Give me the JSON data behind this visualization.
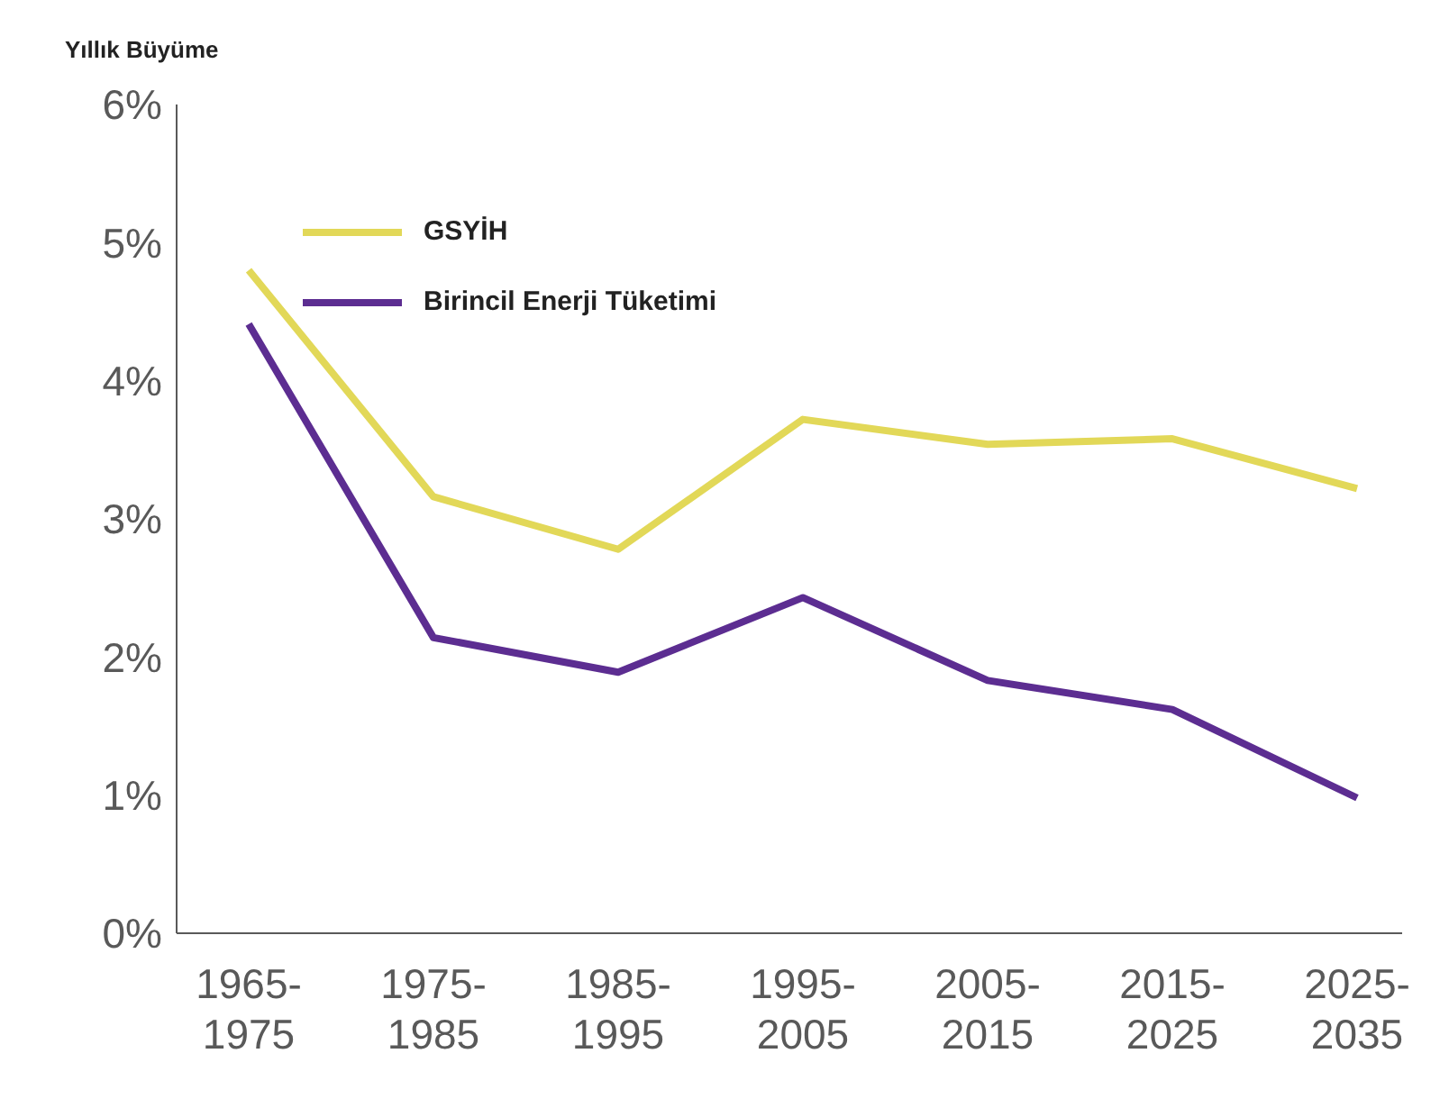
{
  "chart_data": {
    "type": "line",
    "ylabel": "Yıllık Büyüme",
    "categories": [
      "1965-1975",
      "1975-1985",
      "1985-1995",
      "1995-2005",
      "2005-2015",
      "2015-2025",
      "2025-2035"
    ],
    "series": [
      {
        "name": "GSYİH",
        "color": "#e2d858",
        "values": [
          4.8,
          3.16,
          2.78,
          3.72,
          3.54,
          3.58,
          3.22
        ]
      },
      {
        "name": "Birincil Enerji Tüketimi",
        "color": "#5c2d91",
        "values": [
          4.41,
          2.14,
          1.89,
          2.43,
          1.83,
          1.62,
          0.98
        ]
      }
    ],
    "ylim": [
      0,
      6
    ],
    "yticks": [
      {
        "value": 0,
        "label": "0%"
      },
      {
        "value": 1,
        "label": "1%"
      },
      {
        "value": 2,
        "label": "2%"
      },
      {
        "value": 3,
        "label": "3%"
      },
      {
        "value": 4,
        "label": "4%"
      },
      {
        "value": 5,
        "label": "5%"
      },
      {
        "value": 6,
        "label": "6%"
      }
    ],
    "grid": false,
    "legend": "top left",
    "marker": "none",
    "line_style": "solid"
  }
}
